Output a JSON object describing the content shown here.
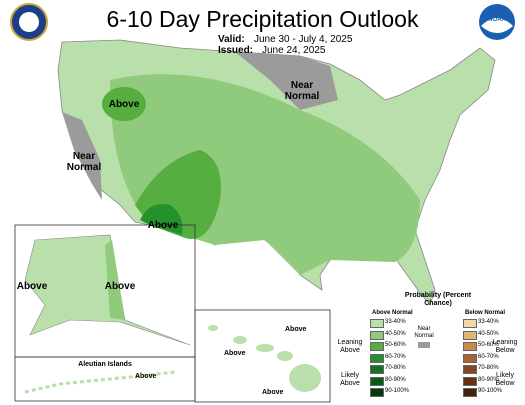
{
  "header": {
    "title": "6-10 Day Precipitation Outlook",
    "valid_label": "Valid:",
    "valid": "June 30 - July 4, 2025",
    "issued_label": "Issued:",
    "issued": "June 24, 2025",
    "noaa_logo": "NOAA"
  },
  "map_labels": [
    "Above",
    "Near Normal",
    "Near Normal",
    "Above",
    "Above",
    "Above",
    "Aleutian Islands",
    "Above",
    "Above",
    "Above",
    "Above"
  ],
  "legend": {
    "title": "Probability (Percent Chance)",
    "above_header": "Above Normal",
    "below_header": "Below Normal",
    "above": [
      {
        "range": "33-40%",
        "color": "#b9dfaa"
      },
      {
        "range": "40-50%",
        "color": "#90ca7c"
      },
      {
        "range": "50-60%",
        "color": "#55ae3f"
      },
      {
        "range": "60-70%",
        "color": "#24922c"
      },
      {
        "range": "70-80%",
        "color": "#137420"
      },
      {
        "range": "80-90%",
        "color": "#0c5a17"
      },
      {
        "range": "90-100%",
        "color": "#06380e"
      }
    ],
    "below": [
      {
        "range": "33-40%",
        "color": "#f0d9a5"
      },
      {
        "range": "40-50%",
        "color": "#dfb675"
      },
      {
        "range": "50-60%",
        "color": "#c9894b"
      },
      {
        "range": "60-70%",
        "color": "#a96530"
      },
      {
        "range": "70-80%",
        "color": "#87461f"
      },
      {
        "range": "80-90%",
        "color": "#663015"
      },
      {
        "range": "90-100%",
        "color": "#45200d"
      }
    ],
    "leaning_above": "Leaning Above",
    "likely_above": "Likely Above",
    "near_normal": "Near Normal",
    "near_color": "#9b9b9b",
    "leaning_below": "Leaning Below",
    "likely_below": "Likely Below"
  }
}
